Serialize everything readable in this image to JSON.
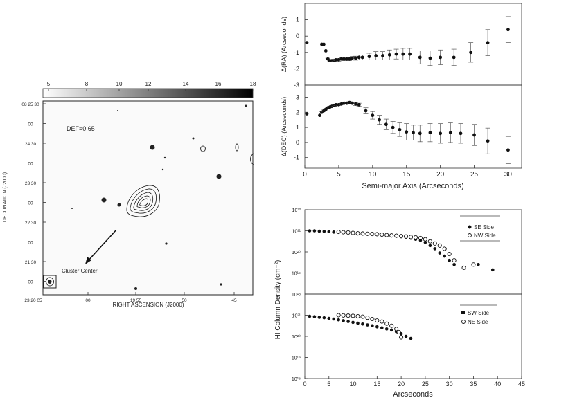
{
  "image_panel": {
    "colorbar_ticks": [
      "5",
      "8",
      "10",
      "12",
      "14",
      "16",
      "18"
    ],
    "dec_ticks": [
      "08 25 30",
      "00",
      "24 30",
      "00",
      "23 30",
      "00",
      "22 30",
      "00",
      "21 30",
      "00"
    ],
    "ra_ticks": [
      "23 20 05",
      "00",
      "19 55",
      "50",
      "45"
    ],
    "xlabel": "RIGHT ASCENSION (J2000)",
    "ylabel": "DECLINATION (J2000)",
    "annotation": "DEF=0.65",
    "arrow_label": "Cluster Center"
  },
  "chart_data": [
    {
      "id": "dra",
      "type": "scatter",
      "ylabel": "Δ(RA) (Arcseconds)",
      "xlim": [
        0,
        32
      ],
      "ylim": [
        -3,
        2
      ],
      "yticks": [
        "1",
        "0",
        "-1",
        "-2",
        "-3"
      ],
      "x": [
        0.3,
        2.5,
        2.8,
        3.1,
        3.4,
        3.7,
        4.0,
        4.3,
        4.6,
        5.0,
        5.4,
        5.8,
        6.2,
        6.6,
        7.0,
        7.5,
        8.0,
        8.5,
        9.5,
        10.5,
        11.5,
        12.5,
        13.5,
        14.5,
        15.5,
        17.0,
        18.5,
        20.0,
        22.0,
        24.5,
        27.0,
        30.0
      ],
      "y": [
        -0.4,
        -0.5,
        -0.5,
        -0.9,
        -1.4,
        -1.5,
        -1.5,
        -1.5,
        -1.45,
        -1.45,
        -1.4,
        -1.4,
        -1.4,
        -1.4,
        -1.35,
        -1.35,
        -1.3,
        -1.3,
        -1.25,
        -1.2,
        -1.2,
        -1.15,
        -1.1,
        -1.1,
        -1.1,
        -1.3,
        -1.35,
        -1.3,
        -1.3,
        -1.0,
        -0.4,
        0.4
      ],
      "err": [
        0,
        0,
        0,
        0,
        0.05,
        0.05,
        0.05,
        0.05,
        0.05,
        0.08,
        0.08,
        0.1,
        0.1,
        0.1,
        0.1,
        0.12,
        0.15,
        0.15,
        0.2,
        0.25,
        0.25,
        0.3,
        0.3,
        0.35,
        0.35,
        0.4,
        0.45,
        0.45,
        0.5,
        0.6,
        0.8,
        0.8
      ]
    },
    {
      "id": "ddec",
      "type": "scatter",
      "ylabel": "Δ(DEC) (Arcseconds)",
      "xlabel": "Semi-major Axis (Arcseconds)",
      "xlim": [
        0,
        32
      ],
      "ylim": [
        -1.7,
        3.8
      ],
      "xticks": [
        "0",
        "5",
        "10",
        "15",
        "20",
        "25",
        "30"
      ],
      "yticks": [
        "3",
        "2",
        "1",
        "0",
        "-1"
      ],
      "x": [
        0.3,
        2.2,
        2.5,
        2.8,
        3.1,
        3.4,
        3.7,
        4.0,
        4.3,
        4.6,
        5.0,
        5.4,
        5.8,
        6.2,
        6.6,
        7.0,
        7.5,
        8.0,
        9.0,
        10.0,
        11.0,
        12.0,
        13.0,
        14.0,
        15.0,
        16.0,
        17.0,
        18.5,
        20.0,
        21.5,
        23.0,
        25.0,
        27.0,
        30.0
      ],
      "y": [
        1.9,
        1.8,
        2.0,
        2.1,
        2.2,
        2.3,
        2.35,
        2.4,
        2.45,
        2.5,
        2.5,
        2.55,
        2.6,
        2.6,
        2.65,
        2.6,
        2.55,
        2.5,
        2.1,
        1.8,
        1.5,
        1.2,
        1.0,
        0.85,
        0.7,
        0.65,
        0.6,
        0.65,
        0.6,
        0.65,
        0.6,
        0.5,
        0.1,
        -0.5
      ],
      "err": [
        0,
        0,
        0.05,
        0.05,
        0.05,
        0.05,
        0.05,
        0.05,
        0.05,
        0.05,
        0.05,
        0.05,
        0.05,
        0.05,
        0.05,
        0.05,
        0.1,
        0.1,
        0.2,
        0.25,
        0.3,
        0.35,
        0.4,
        0.45,
        0.55,
        0.5,
        0.55,
        0.6,
        0.65,
        0.65,
        0.65,
        0.7,
        0.85,
        0.9
      ]
    },
    {
      "id": "hi_top",
      "type": "scatter",
      "log_y": true,
      "ylim_exp": [
        18,
        22
      ],
      "xlim": [
        0,
        45
      ],
      "yticks": [
        "10²²",
        "10²¹",
        "10²⁰",
        "10¹⁹",
        "10¹⁸"
      ],
      "legend": [
        "SE Side",
        "NW Side"
      ],
      "series": [
        {
          "name": "SE Side",
          "marker": "filled",
          "x": [
            1,
            2,
            3,
            4,
            5,
            6,
            7,
            8,
            9,
            10,
            11,
            12,
            13,
            14,
            15,
            16,
            17,
            18,
            19,
            20,
            21,
            22,
            23,
            24,
            25,
            26,
            27,
            28,
            29,
            30,
            31,
            36,
            39
          ],
          "y": [
            21,
            21,
            20.98,
            20.97,
            20.96,
            20.94,
            20.93,
            20.92,
            20.91,
            20.9,
            20.88,
            20.87,
            20.85,
            20.84,
            20.82,
            20.8,
            20.78,
            20.76,
            20.74,
            20.72,
            20.7,
            20.65,
            20.6,
            20.55,
            20.45,
            20.3,
            20.15,
            19.95,
            19.8,
            19.6,
            19.4,
            19.4,
            19.15
          ]
        },
        {
          "name": "NW Side",
          "marker": "open",
          "x": [
            7,
            8,
            9,
            10,
            11,
            12,
            13,
            14,
            15,
            16,
            17,
            18,
            19,
            20,
            21,
            22,
            23,
            24,
            25,
            26,
            27,
            28,
            29,
            30,
            31,
            33,
            35
          ],
          "y": [
            20.95,
            20.93,
            20.92,
            20.9,
            20.88,
            20.87,
            20.86,
            20.85,
            20.84,
            20.82,
            20.8,
            20.78,
            20.77,
            20.75,
            20.73,
            20.71,
            20.69,
            20.66,
            20.6,
            20.5,
            20.4,
            20.3,
            20.15,
            19.9,
            19.6,
            19.25,
            19.4
          ]
        }
      ]
    },
    {
      "id": "hi_bottom",
      "type": "scatter",
      "log_y": true,
      "ylim_exp": [
        18,
        22
      ],
      "xlim": [
        0,
        45
      ],
      "xlabel": "Arcseconds",
      "ylabel": "HI Column Density (cm⁻²)",
      "xticks": [
        "0",
        "5",
        "10",
        "15",
        "20",
        "25",
        "30",
        "35",
        "40",
        "45"
      ],
      "yticks": [
        "10²¹",
        "10²⁰",
        "10¹⁹",
        "10¹⁸"
      ],
      "legend": [
        "SW Side",
        "NE Side"
      ],
      "series": [
        {
          "name": "SW Side",
          "marker": "filled",
          "x": [
            1,
            2,
            3,
            4,
            5,
            6,
            7,
            8,
            9,
            10,
            11,
            12,
            13,
            14,
            15,
            16,
            17,
            18,
            19,
            20,
            21,
            22
          ],
          "y": [
            20.95,
            20.93,
            20.9,
            20.88,
            20.85,
            20.82,
            20.78,
            20.74,
            20.7,
            20.66,
            20.62,
            20.58,
            20.54,
            20.5,
            20.45,
            20.4,
            20.35,
            20.3,
            20.22,
            20.12,
            20.0,
            19.9
          ]
        },
        {
          "name": "NE Side",
          "marker": "open",
          "x": [
            7,
            8,
            9,
            10,
            11,
            12,
            13,
            14,
            15,
            16,
            17,
            18,
            19,
            19.5,
            20
          ],
          "y": [
            21.0,
            20.99,
            20.98,
            20.97,
            20.95,
            20.93,
            20.88,
            20.82,
            20.75,
            20.7,
            20.6,
            20.5,
            20.35,
            20.2,
            19.95
          ]
        }
      ]
    }
  ]
}
